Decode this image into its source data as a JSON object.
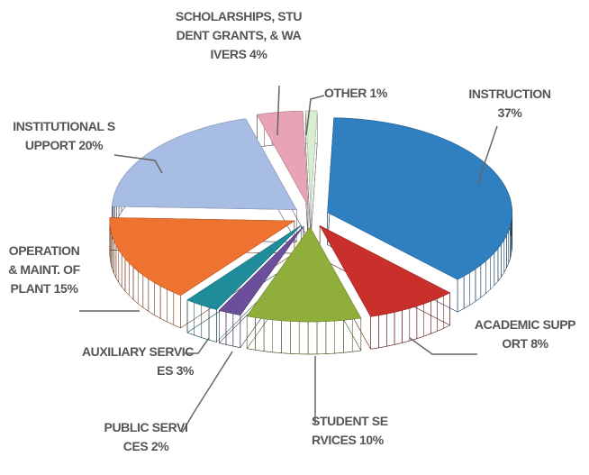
{
  "chart_data": {
    "type": "pie3d",
    "categories": [
      "INSTRUCTION",
      "ACADEMIC SUPPORT",
      "STUDENT SERVICES",
      "PUBLIC SERVICES",
      "AUXILIARY SERVICES",
      "OPERATION & MAINT. OF PLANT",
      "INSTITUTIONAL SUPPORT",
      "SCHOLARSHIPS, STUDENT GRANTS, &amp; WAIVERS",
      "OTHER"
    ],
    "values": [
      37,
      8,
      10,
      2,
      3,
      15,
      20,
      4,
      1
    ],
    "value_labels": [
      "37%",
      "8%",
      "10%",
      "2%",
      "3%",
      "15%",
      "20%",
      "4%",
      "1%"
    ],
    "colors": [
      "#2f7fc1",
      "#c9302c",
      "#8fae3c",
      "#6b4f9a",
      "#1f8c9c",
      "#ee7330",
      "#a8bde3",
      "#e8a3b4",
      "#d9edd3"
    ]
  }
}
